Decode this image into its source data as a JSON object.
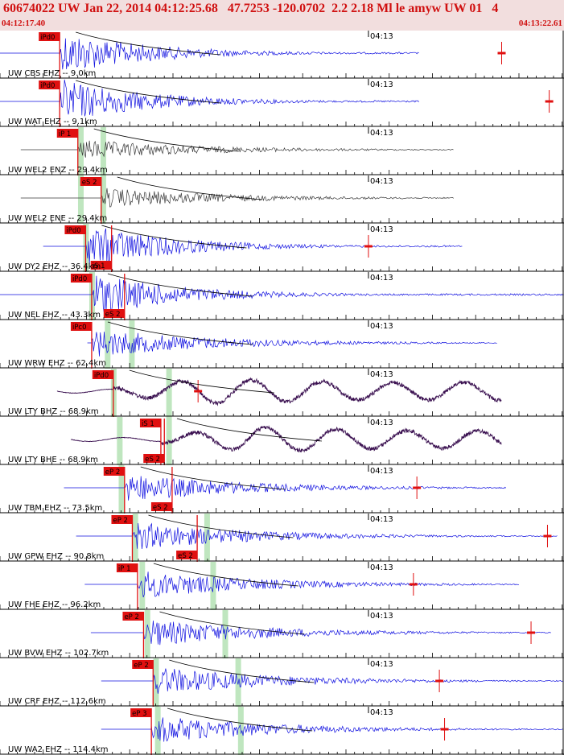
{
  "header": {
    "title": "60674022 UW Jan 22, 2014 04:12:25.68   47.7253 -120.0702  2.2 2.18 Ml le amyw UW 01   4",
    "start_time": "04:12:17.40",
    "end_time": "04:13:22.61"
  },
  "colors": {
    "header_bg": "#f2dede",
    "header_text": "#d01010",
    "trace_blue": "#1010e0",
    "trace_gray": "#3a3a3a",
    "trace_purple": "#3a1050",
    "pick_red": "#e01010",
    "window_green": "#bfe6bf",
    "moveout_curve": "#000000"
  },
  "chart_data": {
    "type": "seismogram-record-section",
    "event_id": "60674022",
    "network": "UW",
    "origin_time": "Jan 22, 2014 04:12:25.68",
    "latitude": 47.7253,
    "longitude": -120.0702,
    "magnitude": "2.18 Ml",
    "time_axis": {
      "start": "04:12:17.40",
      "end": "04:13:22.61",
      "minute_mark_label": "04:13",
      "minute_mark_seconds": 42.6,
      "duration_seconds": 65.21,
      "tick_interval_seconds": 1
    },
    "traces": [
      {
        "label": "UW CBS EHZ -- 9.0km",
        "color": "blue",
        "wave": "noise",
        "data_start_s": 0,
        "data_end_s": 48.5,
        "picks": [
          {
            "label": "iPd0",
            "time_s": 6.9
          }
        ],
        "windows_s": [],
        "outliers_s": [
          58.0
        ]
      },
      {
        "label": "UW WAT EHZ -- 9.1km",
        "color": "blue",
        "wave": "noise",
        "data_start_s": 0,
        "data_end_s": 48.5,
        "picks": [
          {
            "label": "iPd0",
            "time_s": 6.9
          }
        ],
        "windows_s": [],
        "outliers_s": [
          63.5
        ]
      },
      {
        "label": "UW WEL2 ENZ -- 29.4km",
        "color": "gray",
        "wave": "noise",
        "data_start_s": 2.4,
        "data_end_s": 52.5,
        "picks": [
          {
            "label": "iP 1",
            "time_s": 9.0
          }
        ],
        "windows_s": [
          9.3,
          11.9
        ],
        "outliers_s": []
      },
      {
        "label": "UW WEL2 ENE -- 29.4km",
        "color": "gray",
        "wave": "noise",
        "data_start_s": 2.4,
        "data_end_s": 52.5,
        "picks": [
          {
            "label": "eS 2",
            "time_s": 11.7
          }
        ],
        "windows_s": [
          9.3,
          11.9
        ],
        "outliers_s": []
      },
      {
        "label": "UW DY2 EHZ -- 36.4km",
        "color": "blue",
        "wave": "noise",
        "data_start_s": 5.0,
        "data_end_s": 53.5,
        "picks": [
          {
            "label": "iPd0",
            "time_s": 9.9
          },
          {
            "label": "iS 1",
            "time_s": 12.9
          }
        ],
        "windows_s": [
          9.9
        ],
        "outliers_s": [
          42.6
        ]
      },
      {
        "label": "UW NEL EHZ -- 43.3km",
        "color": "blue",
        "wave": "noise",
        "data_start_s": 0,
        "data_end_s": 65.2,
        "picks": [
          {
            "label": "iPd0",
            "time_s": 10.6
          },
          {
            "label": "eS 2",
            "time_s": 14.4
          }
        ],
        "windows_s": [
          10.6
        ],
        "outliers_s": []
      },
      {
        "label": "UW WRW EHZ -- 62.4km",
        "color": "blue",
        "wave": "noise",
        "data_start_s": 10.1,
        "data_end_s": 57.5,
        "picks": [
          {
            "label": "iPc0",
            "time_s": 10.6
          }
        ],
        "windows_s": [
          12.4,
          15.2
        ],
        "outliers_s": []
      },
      {
        "label": "UW LTY BHZ -- 68.9km",
        "color": "purple",
        "wave": "wavy",
        "data_start_s": 6.6,
        "data_end_s": 58.0,
        "picks": [
          {
            "label": "iPd0",
            "time_s": 13.1
          }
        ],
        "windows_s": [
          13.1,
          19.5
        ],
        "outliers_s": [
          22.9
        ]
      },
      {
        "label": "UW LTY BHE -- 68.9km",
        "color": "purple",
        "wave": "wavy",
        "data_start_s": 8.2,
        "data_end_s": 58.0,
        "picks": [
          {
            "label": "iS 1",
            "time_s": 18.6
          },
          {
            "label": "eS 2",
            "time_s": 19.0
          }
        ],
        "windows_s": [
          13.8,
          19.5
        ],
        "outliers_s": []
      },
      {
        "label": "UW TBM EHZ -- 73.5km",
        "color": "blue",
        "wave": "noise",
        "data_start_s": 7.4,
        "data_end_s": 58.5,
        "picks": [
          {
            "label": "eP 2",
            "time_s": 14.4
          },
          {
            "label": "eS 2",
            "time_s": 19.9
          }
        ],
        "windows_s": [
          14.0
        ],
        "outliers_s": [
          48.2
        ]
      },
      {
        "label": "UW GPW EHZ -- 90.8km",
        "color": "blue",
        "wave": "noise",
        "data_start_s": 8.8,
        "data_end_s": 64.5,
        "picks": [
          {
            "label": "eP 2",
            "time_s": 15.3
          },
          {
            "label": "eS 2",
            "time_s": 22.8
          }
        ],
        "windows_s": [
          15.6,
          23.9
        ],
        "outliers_s": [
          63.3
        ]
      },
      {
        "label": "UW FHE EHZ -- 96.2km",
        "color": "blue",
        "wave": "noise",
        "data_start_s": 9.8,
        "data_end_s": 60.0,
        "picks": [
          {
            "label": "iP 1",
            "time_s": 15.9
          }
        ],
        "windows_s": [
          16.4,
          24.6
        ],
        "outliers_s": [
          47.8
        ]
      },
      {
        "label": "UW BVW EHZ -- 102.7km",
        "color": "blue",
        "wave": "noise",
        "data_start_s": 10.5,
        "data_end_s": 63.8,
        "picks": [
          {
            "label": "eP 2",
            "time_s": 16.6
          }
        ],
        "windows_s": [
          17.0,
          26.0
        ],
        "outliers_s": [
          61.4
        ]
      },
      {
        "label": "UW CRF EHZ -- 112.6km",
        "color": "blue",
        "wave": "noise",
        "data_start_s": 11.7,
        "data_end_s": 65.2,
        "picks": [
          {
            "label": "eP 2",
            "time_s": 17.7
          }
        ],
        "windows_s": [
          18.0,
          27.5
        ],
        "outliers_s": [
          50.8
        ]
      },
      {
        "label": "UW WA2 EHZ -- 114.4km",
        "color": "blue",
        "wave": "noise",
        "data_start_s": 11.7,
        "data_end_s": 65.2,
        "picks": [
          {
            "label": "eP 3",
            "time_s": 17.5
          }
        ],
        "windows_s": [
          18.2,
          27.8
        ],
        "outliers_s": [
          51.4
        ]
      }
    ]
  }
}
